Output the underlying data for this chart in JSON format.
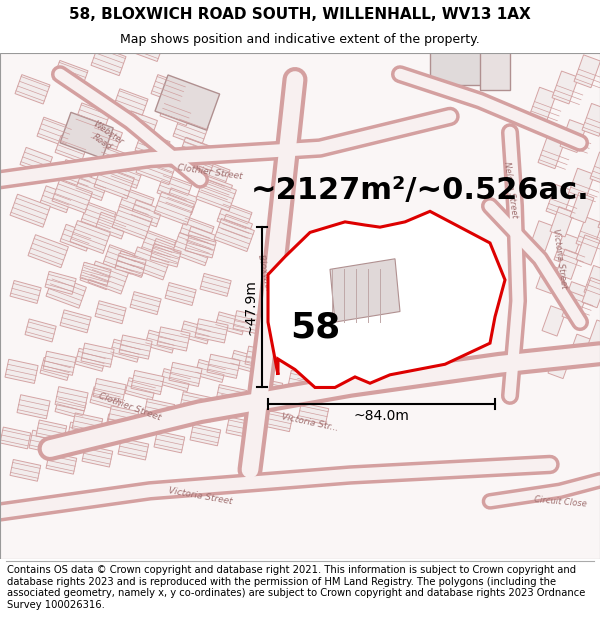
{
  "title": "58, BLOXWICH ROAD SOUTH, WILLENHALL, WV13 1AX",
  "subtitle": "Map shows position and indicative extent of the property.",
  "area_text": "~2127m²/~0.526ac.",
  "width_text": "~84.0m",
  "height_text": "~47.9m",
  "number_text": "58",
  "footer_text": "Contains OS data © Crown copyright and database right 2021. This information is subject to Crown copyright and database rights 2023 and is reproduced with the permission of HM Land Registry. The polygons (including the associated geometry, namely x, y co-ordinates) are subject to Crown copyright and database rights 2023 Ordnance Survey 100026316.",
  "bg_color": "#ffffff",
  "map_bg": "#f8f4f4",
  "road_outline": "#e8b0b0",
  "road_fill": "#faf0f0",
  "building_outline": "#c0a0a0",
  "building_fill": "#e8e0e0",
  "plot_color": "#dd0000",
  "plot_fill": "#ffffff",
  "title_fontsize": 11,
  "subtitle_fontsize": 9,
  "area_fontsize": 22,
  "number_fontsize": 26,
  "dim_fontsize": 10,
  "footer_fontsize": 7.2,
  "label_color": "#a07070",
  "label_fontsize": 6.5
}
